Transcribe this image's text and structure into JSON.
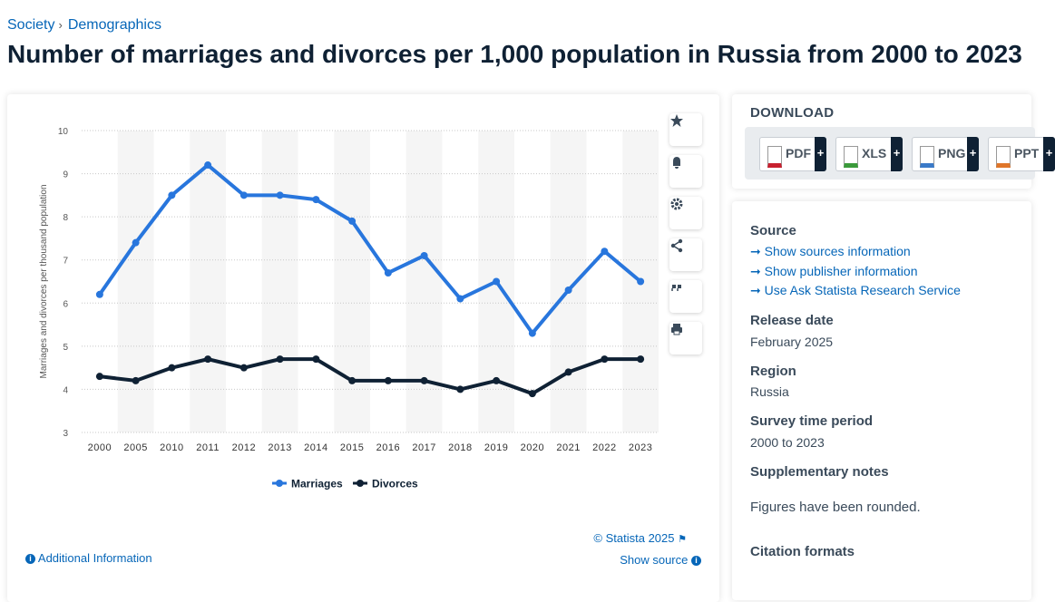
{
  "breadcrumb": [
    "Society",
    "Demographics"
  ],
  "title": "Number of marriages and divorces per 1,000 population in Russia from 2000 to 2023",
  "chart_data": {
    "type": "line",
    "y_label": "Marriages and divorces per thousand population",
    "categories": [
      "2000",
      "2005",
      "2010",
      "2011",
      "2012",
      "2013",
      "2014",
      "2015",
      "2016",
      "2017",
      "2018",
      "2019",
      "2020",
      "2021",
      "2022",
      "2023"
    ],
    "series": [
      {
        "name": "Marriages",
        "color": "#2876dd",
        "values": [
          6.2,
          7.4,
          8.5,
          9.2,
          8.5,
          8.5,
          8.4,
          7.9,
          6.7,
          7.1,
          6.1,
          6.5,
          5.3,
          6.3,
          7.2,
          6.5
        ]
      },
      {
        "name": "Divorces",
        "color": "#0f2134",
        "values": [
          4.3,
          4.2,
          4.5,
          4.7,
          4.5,
          4.7,
          4.7,
          4.2,
          4.2,
          4.2,
          4.0,
          4.2,
          3.9,
          4.4,
          4.7,
          4.7
        ]
      }
    ],
    "ylim": [
      3,
      10
    ],
    "yticks": [
      3,
      4,
      5,
      6,
      7,
      8,
      9,
      10
    ],
    "grid": true,
    "legend": "bottom",
    "copyright": "© Statista 2025",
    "show_source": "Show source",
    "additional_information": "Additional Information"
  },
  "download": {
    "heading": "DOWNLOAD",
    "formats": [
      "PDF",
      "XLS",
      "PNG",
      "PPT"
    ],
    "plus": "+"
  },
  "info": {
    "source": {
      "heading": "Source",
      "links": [
        "Show sources information",
        "Show publisher information",
        "Use Ask Statista Research Service"
      ]
    },
    "release_date": {
      "heading": "Release date",
      "value": "February 2025"
    },
    "region": {
      "heading": "Region",
      "value": "Russia"
    },
    "survey_time_period": {
      "heading": "Survey time period",
      "value": "2000 to 2023"
    },
    "supplementary_notes": {
      "heading": "Supplementary notes",
      "value": "Figures have been rounded."
    },
    "citation_formats": {
      "heading": "Citation formats"
    }
  }
}
